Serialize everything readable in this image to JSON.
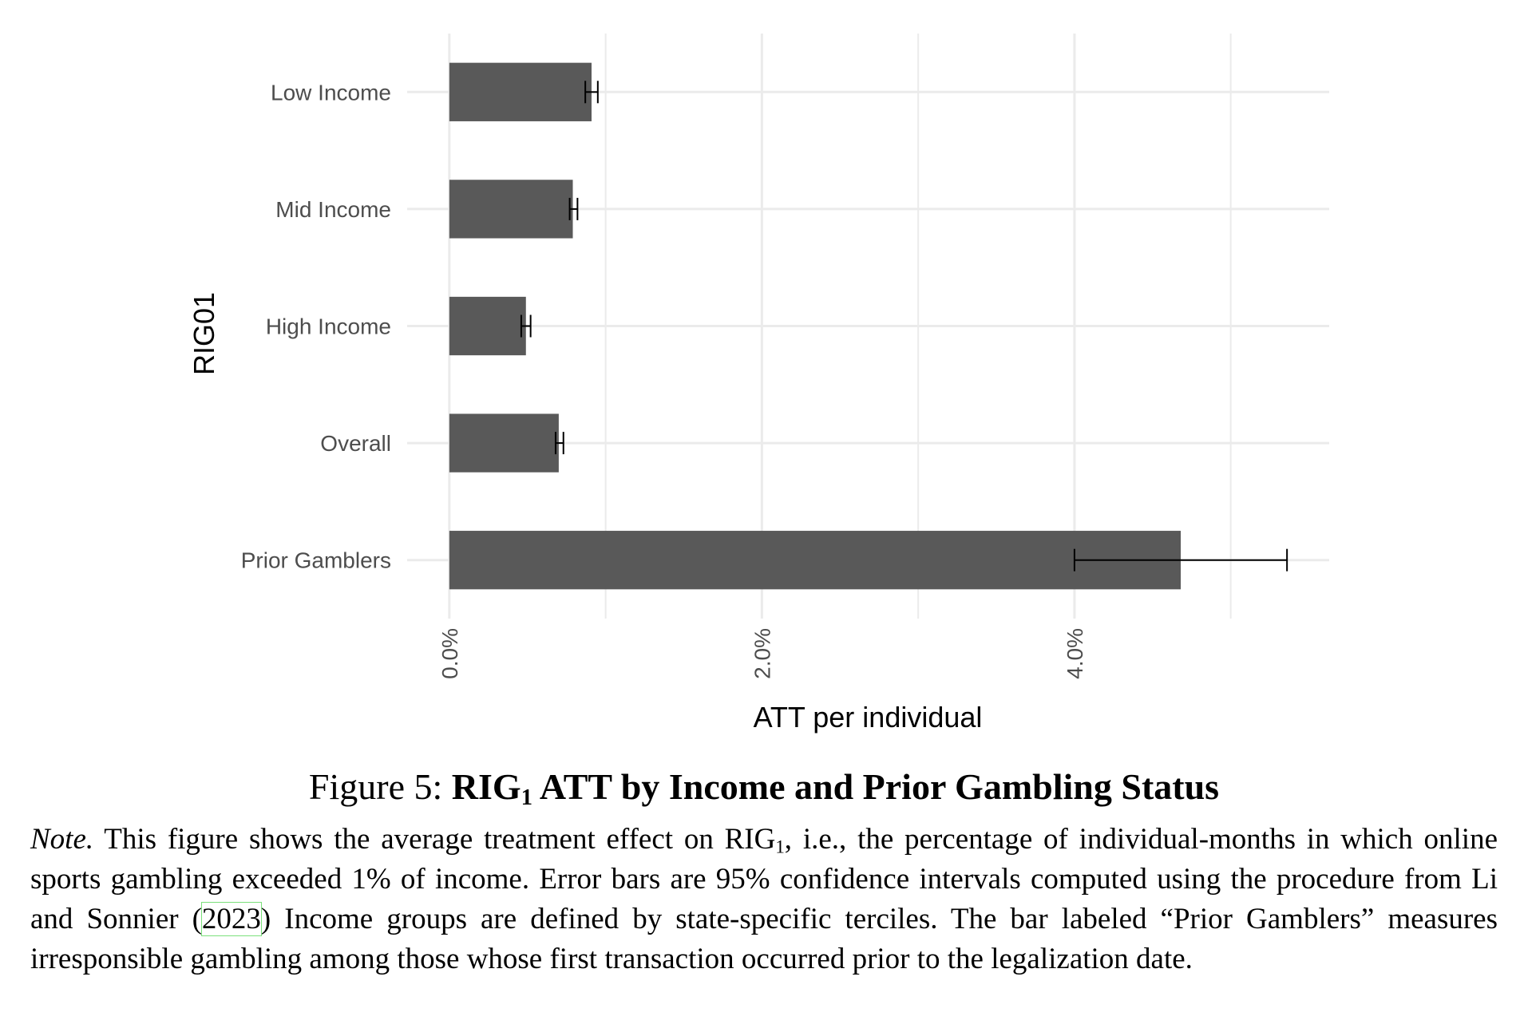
{
  "chart_data": {
    "type": "bar",
    "orientation": "horizontal",
    "categories": [
      "Low Income",
      "Mid Income",
      "High Income",
      "Overall",
      "Prior Gamblers"
    ],
    "values": [
      0.0091,
      0.0079,
      0.0049,
      0.007,
      0.0468
    ],
    "error_low": [
      0.0087,
      0.0077,
      0.0046,
      0.0068,
      0.04
    ],
    "error_high": [
      0.0095,
      0.0082,
      0.0052,
      0.0073,
      0.0536
    ],
    "xlabel": "ATT per individual",
    "ylabel": "RIG01",
    "xlim": [
      -0.0027,
      0.0563
    ],
    "xticks": [
      0.0,
      0.02,
      0.04
    ],
    "xtick_labels": [
      "0.0%",
      "2.0%",
      "4.0%"
    ],
    "grid": true,
    "bar_color": "#595959",
    "grid_color": "#ebebeb",
    "errorbar_color": "#000000"
  },
  "caption": {
    "figure_label": "Figure 5:",
    "title_pre": "RIG",
    "title_sub": "1",
    "title_post": " ATT by Income and Prior Gambling Status",
    "note_label": "Note.",
    "note_part1": " This figure shows the average treatment effect on RIG",
    "note_sub": "1",
    "note_part2": ", i.e., the percentage of individual-months in which online sports gambling exceeded 1% of income.  Error bars are 95% confidence intervals computed using the procedure from Li and Sonnier (",
    "note_cite": "2023",
    "note_part3": ") Income groups are defined by state-specific terciles. The bar labeled “Prior Gamblers” measures irresponsible gambling among those whose first transaction occurred prior to the legalization date."
  }
}
